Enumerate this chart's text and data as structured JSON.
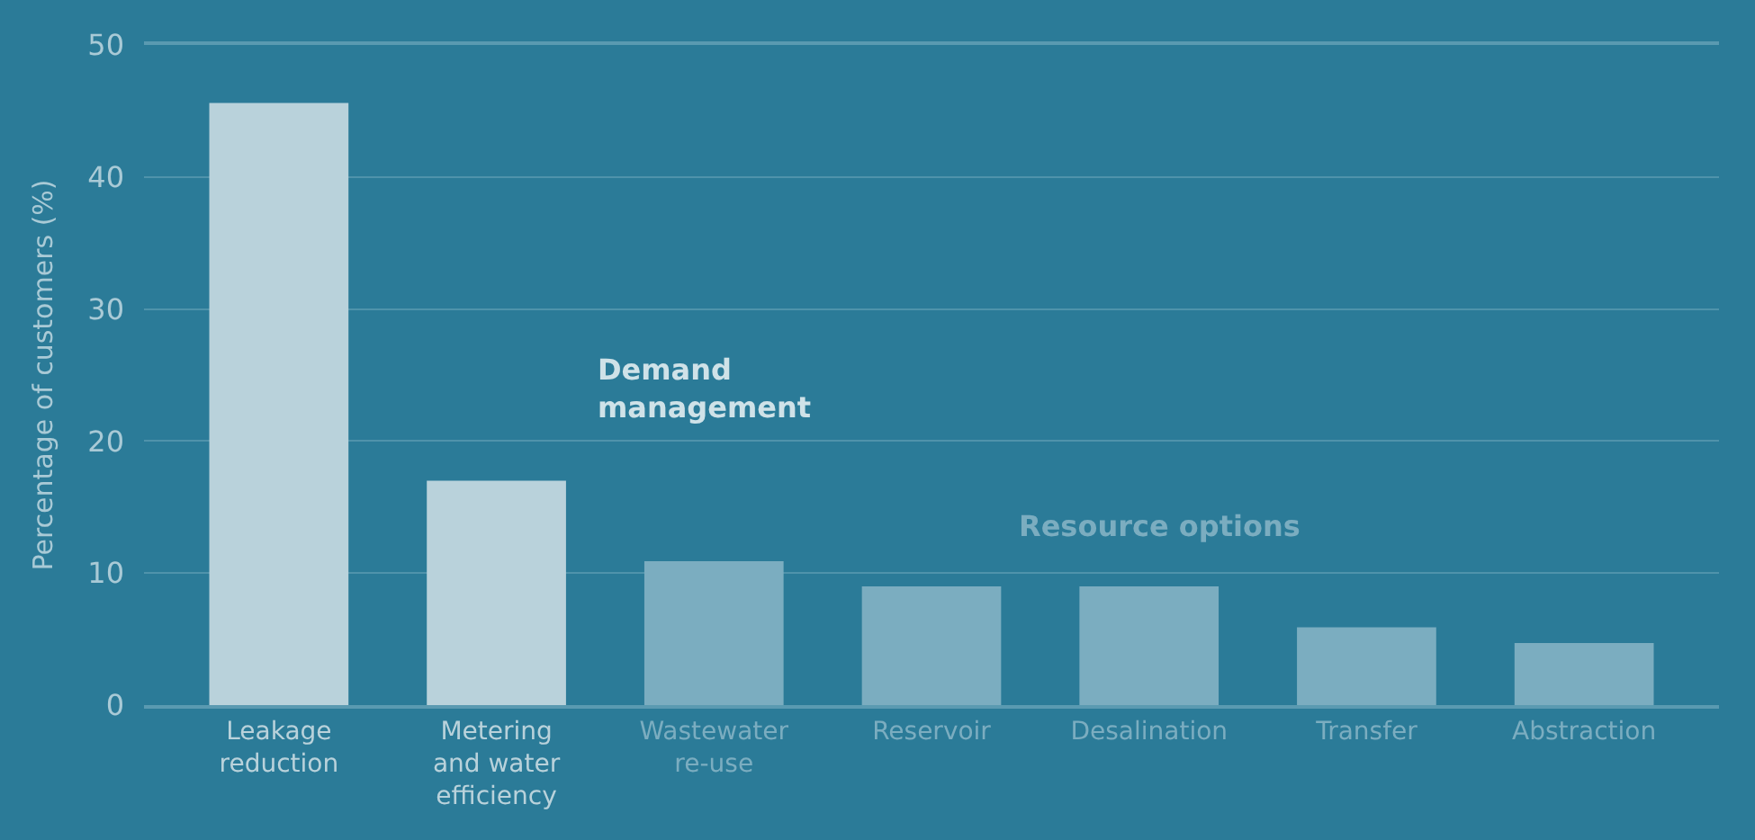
{
  "chart_data": {
    "type": "bar",
    "ylabel": "Percentage of customers (%)",
    "categories": [
      "Leakage reduction",
      "Metering and water efficiency",
      "Wastewater re-use",
      "Reservoir",
      "Desalination",
      "Transfer",
      "Abstraction"
    ],
    "values": [
      45.6,
      17,
      10.9,
      9,
      9,
      5.9,
      4.7
    ],
    "colors": [
      "#b9d2db",
      "#b9d2db",
      "#7badc0",
      "#7badc0",
      "#7badc0",
      "#7badc0",
      "#7badc0"
    ],
    "ylim": [
      0,
      50
    ],
    "yticks": [
      0,
      10,
      20,
      30,
      40,
      50
    ],
    "grid": "y",
    "annotations": [
      "Demand management",
      "Resource options"
    ]
  }
}
